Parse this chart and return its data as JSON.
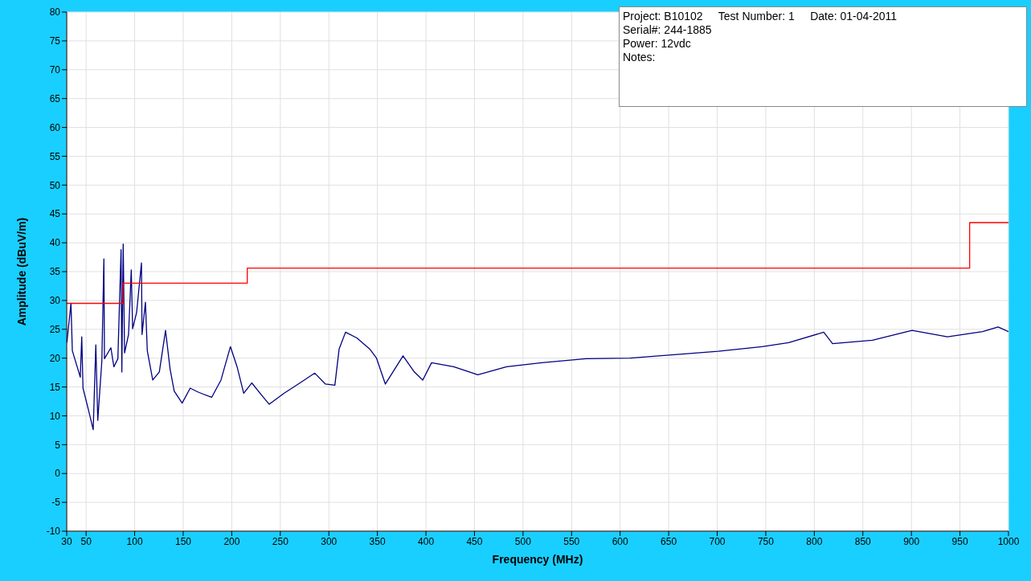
{
  "chart_data": {
    "type": "line",
    "xlabel": "Frequency (MHz)",
    "ylabel": "Amplitude (dBuV/m)",
    "xlim": [
      30,
      1000
    ],
    "xticks": [
      30,
      50,
      100,
      150,
      200,
      250,
      300,
      350,
      400,
      450,
      500,
      550,
      600,
      650,
      700,
      750,
      800,
      850,
      900,
      950,
      1000
    ],
    "ylim": [
      -10,
      80
    ],
    "yticks": [
      -10,
      -5,
      0,
      5,
      10,
      15,
      20,
      25,
      30,
      35,
      40,
      45,
      50,
      55,
      60,
      65,
      70,
      75,
      80
    ],
    "grid": true,
    "series": [
      {
        "color": "#000080",
        "x": [
          30.2,
          34.4,
          35.8,
          44,
          45.5,
          46.8,
          52.3,
          57.3,
          60,
          62,
          66.2,
          68.3,
          68.9,
          75.5,
          78.6,
          82.7,
          86,
          86.8,
          88.2,
          89.6,
          93.7,
          96.5,
          97.9,
          102,
          107,
          107.6,
          111.1,
          113,
          118.6,
          125.4,
          131.8,
          136.5,
          140.7,
          148.9,
          157.2,
          165.5,
          179.3,
          188.9,
          198.6,
          205.5,
          212.3,
          220.6,
          231.7,
          238.6,
          253.7,
          270.3,
          285.5,
          296.5,
          301.5,
          306.2,
          310.6,
          317.2,
          328.8,
          342,
          349.1,
          358.2,
          376.4,
          387.6,
          396.7,
          405.8,
          428.6,
          453.5,
          483.1,
          519.2,
          564.7,
          610.2,
          655.7,
          701,
          746.3,
          773.6,
          809.7,
          818.8,
          859.9,
          900.7,
          937.1,
          973.4,
          989.3,
          1000
        ],
        "values": [
          22.7,
          29.5,
          21.3,
          16.7,
          23.7,
          14.8,
          11.1,
          7.6,
          22.3,
          9.2,
          19.5,
          37.2,
          19.9,
          21.8,
          18.5,
          19.9,
          38.8,
          17.6,
          39.8,
          20.9,
          24.1,
          35.3,
          25.1,
          27.9,
          36.5,
          24.1,
          29.7,
          21.3,
          16.2,
          17.6,
          24.8,
          18.1,
          14.3,
          12.2,
          14.8,
          14.1,
          13.2,
          16.2,
          22.0,
          18.5,
          13.9,
          15.7,
          13.4,
          12.0,
          13.9,
          15.7,
          17.4,
          15.5,
          15.4,
          15.3,
          21.6,
          24.5,
          23.5,
          21.6,
          20.0,
          15.5,
          20.4,
          17.7,
          16.2,
          19.2,
          18.5,
          17.1,
          18.5,
          19.2,
          19.9,
          20.0,
          20.6,
          21.2,
          22.0,
          22.7,
          24.5,
          22.5,
          23.1,
          24.8,
          23.7,
          24.6,
          25.4,
          24.6
        ]
      },
      {
        "type": "step",
        "color": "#ff0000",
        "x": [
          30,
          88,
          216,
          960,
          1000
        ],
        "values": [
          29.5,
          33,
          35.6,
          43.5,
          43.5
        ]
      }
    ],
    "annotations": [
      "Project: B10102     Test Number: 1     Date: 01-04-2011",
      "Serial#: 244-1885",
      "Power: 12vdc",
      "Notes:"
    ]
  }
}
